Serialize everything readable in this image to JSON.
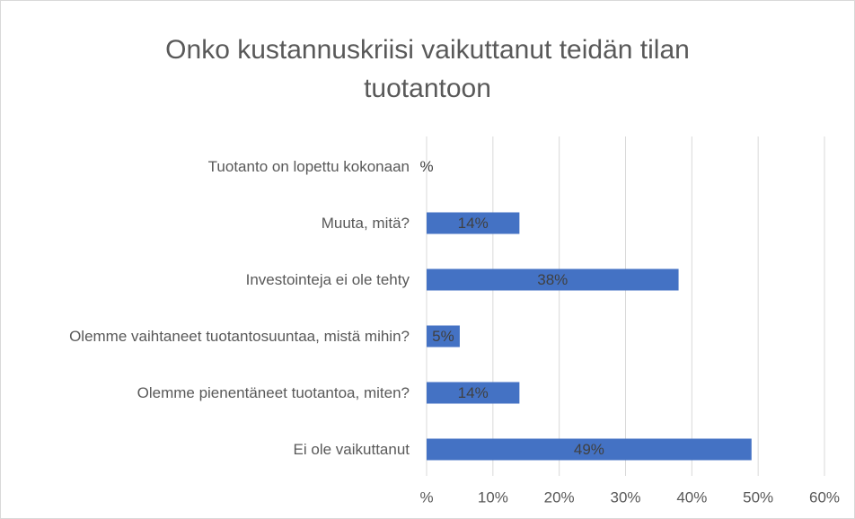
{
  "chart_data": {
    "type": "hbar",
    "title": "Onko kustannuskriisi vaikuttanut teidän tilan tuotantoon",
    "categories": [
      "Tuotanto on lopettu kokonaan",
      "Muuta, mitä?",
      "Investointeja ei ole tehty",
      "Olemme vaihtaneet tuotantosuuntaa, mistä mihin?",
      "Olemme pienentäneet tuotantoa, miten?",
      "Ei ole vaikuttanut"
    ],
    "values": [
      0,
      14,
      38,
      5,
      14,
      49
    ],
    "value_labels": [
      "%",
      "14%",
      "38%",
      "5%",
      "14%",
      "49%"
    ],
    "color": "#4472c4",
    "xlim": [
      0,
      60
    ],
    "xticks": [
      {
        "value": 0,
        "label": "%"
      },
      {
        "value": 10,
        "label": "10%"
      },
      {
        "value": 20,
        "label": "20%"
      },
      {
        "value": 30,
        "label": "30%"
      },
      {
        "value": 40,
        "label": "40%"
      },
      {
        "value": 50,
        "label": "50%"
      },
      {
        "value": 60,
        "label": "60%"
      }
    ],
    "grid": true
  }
}
